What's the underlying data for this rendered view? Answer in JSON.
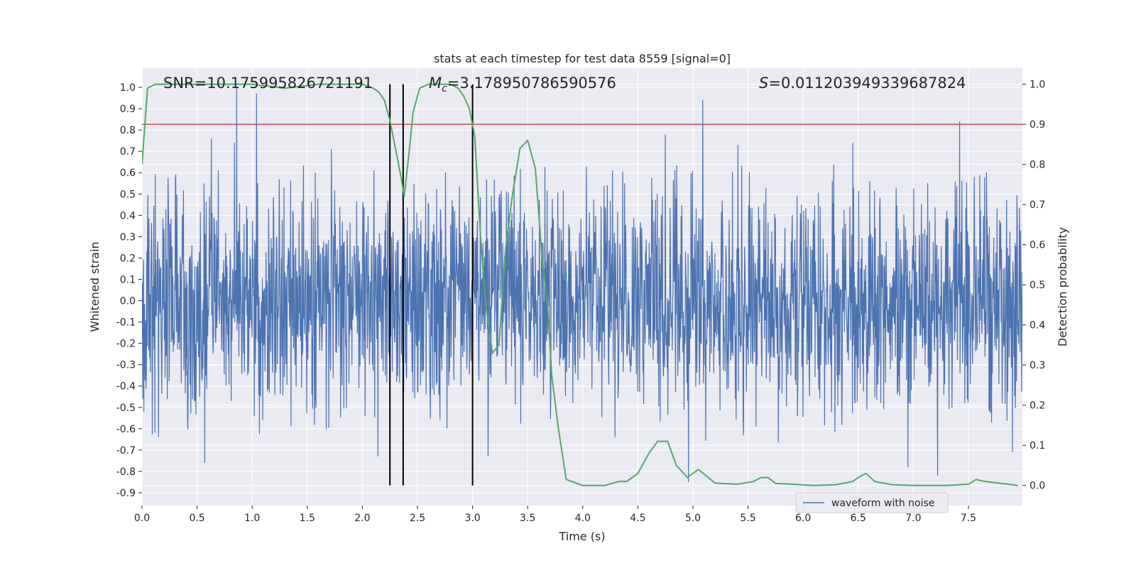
{
  "chart_data": {
    "type": "line",
    "title": "stats at each timestep for test data 8559 [signal=0]",
    "xlabel": "Time (s)",
    "ylabel_left": "Whitened strain",
    "ylabel_right": "Detection probability",
    "xlim": [
      0.0,
      7.99
    ],
    "ylim_left": [
      -0.96,
      1.09
    ],
    "ylim_right": [
      -0.05,
      1.04
    ],
    "x_ticks": [
      0.0,
      0.5,
      1.0,
      1.5,
      2.0,
      2.5,
      3.0,
      3.5,
      4.0,
      4.5,
      5.0,
      5.5,
      6.0,
      6.5,
      7.0,
      7.5
    ],
    "x_tick_labels": [
      "0.0",
      "0.5",
      "1.0",
      "1.5",
      "2.0",
      "2.5",
      "3.0",
      "3.5",
      "4.0",
      "4.5",
      "5.0",
      "5.5",
      "6.0",
      "6.5",
      "7.0",
      "7.5"
    ],
    "y_left_ticks": [
      1.0,
      0.9,
      0.8,
      0.7,
      0.6,
      0.5,
      0.4,
      0.3,
      0.2,
      0.1,
      0.0,
      -0.1,
      -0.2,
      -0.3,
      -0.4,
      -0.5,
      -0.6,
      -0.7,
      -0.8,
      -0.9
    ],
    "y_left_tick_labels": [
      "1.0",
      "0.9",
      "0.8",
      "0.7",
      "0.6",
      "0.5",
      "0.4",
      "0.3",
      "0.2",
      "0.1",
      "0.0",
      "-0.1",
      "-0.2",
      "-0.3",
      "-0.4",
      "-0.5",
      "-0.6",
      "-0.7",
      "-0.8",
      "-0.9"
    ],
    "y_right_ticks": [
      1.0,
      0.9,
      0.8,
      0.7,
      0.6,
      0.5,
      0.4,
      0.3,
      0.2,
      0.1,
      0.0
    ],
    "y_right_tick_labels": [
      "1.0",
      "0.9",
      "0.8",
      "0.7",
      "0.6",
      "0.5",
      "0.4",
      "0.3",
      "0.2",
      "0.1",
      "0.0"
    ],
    "grid": true,
    "legend": {
      "position": "bottom-right",
      "entries": [
        {
          "label": "waveform with noise",
          "color": "#4c72b0"
        }
      ]
    },
    "annotations": {
      "snr": "SNR=10.175995826721191",
      "mc_symbol": "M",
      "mc_sub": "c",
      "mc_value": "=3.178950786590576",
      "s_symbol": "S",
      "s_value": "=0.011203949339687824"
    },
    "threshold_line": {
      "axis": "right",
      "value": 0.9,
      "color": "#c44e52"
    },
    "vertical_markers": [
      2.25,
      2.37,
      3.0
    ],
    "waveform": {
      "name": "waveform with noise",
      "color": "#4c72b0",
      "axis": "left",
      "duration_s": 7.99,
      "typical_amplitude": 0.43,
      "spikes": [
        {
          "t": 0.86,
          "v": 1.0
        },
        {
          "t": 1.04,
          "v": 0.97
        },
        {
          "t": 0.84,
          "v": 0.74
        },
        {
          "t": 0.63,
          "v": 0.76
        },
        {
          "t": 0.57,
          "v": -0.76
        },
        {
          "t": 0.15,
          "v": -0.64
        },
        {
          "t": 1.72,
          "v": 0.71
        },
        {
          "t": 2.14,
          "v": -0.73
        },
        {
          "t": 3.14,
          "v": -0.73
        },
        {
          "t": 4.75,
          "v": 0.78
        },
        {
          "t": 5.09,
          "v": 0.94
        },
        {
          "t": 4.96,
          "v": -0.85
        },
        {
          "t": 7.42,
          "v": 0.84
        },
        {
          "t": 7.22,
          "v": -0.82
        },
        {
          "t": 6.45,
          "v": 0.74
        },
        {
          "t": 5.41,
          "v": 0.73
        },
        {
          "t": 6.95,
          "v": -0.78
        },
        {
          "t": 7.9,
          "v": -0.71
        }
      ]
    },
    "probability": {
      "name": "detection probability",
      "color": "#55a868",
      "axis": "right",
      "x": [
        0.0,
        0.05,
        0.12,
        0.2,
        0.3,
        0.5,
        0.8,
        1.0,
        1.3,
        1.6,
        1.9,
        2.0,
        2.1,
        2.15,
        2.2,
        2.25,
        2.3,
        2.35,
        2.38,
        2.42,
        2.46,
        2.52,
        2.6,
        2.7,
        2.8,
        2.87,
        2.92,
        2.97,
        3.02,
        3.07,
        3.12,
        3.18,
        3.24,
        3.3,
        3.36,
        3.43,
        3.5,
        3.57,
        3.63,
        3.68,
        3.72,
        3.78,
        3.85,
        4.0,
        4.2,
        4.33,
        4.4,
        4.5,
        4.6,
        4.68,
        4.77,
        4.85,
        4.95,
        5.05,
        5.2,
        5.4,
        5.55,
        5.62,
        5.68,
        5.75,
        5.9,
        6.1,
        6.3,
        6.45,
        6.5,
        6.57,
        6.65,
        6.8,
        7.0,
        7.3,
        7.5,
        7.57,
        7.65,
        7.8,
        7.95
      ],
      "y": [
        0.8,
        0.99,
        1.0,
        1.0,
        1.0,
        1.0,
        1.0,
        1.0,
        0.99,
        1.0,
        1.0,
        1.0,
        0.99,
        0.98,
        0.96,
        0.91,
        0.84,
        0.77,
        0.72,
        0.82,
        0.93,
        0.99,
        1.0,
        1.0,
        1.0,
        0.99,
        0.97,
        0.94,
        0.87,
        0.63,
        0.45,
        0.33,
        0.35,
        0.59,
        0.72,
        0.84,
        0.86,
        0.79,
        0.57,
        0.45,
        0.27,
        0.14,
        0.015,
        0.0,
        0.0,
        0.01,
        0.01,
        0.03,
        0.08,
        0.11,
        0.11,
        0.05,
        0.02,
        0.04,
        0.006,
        0.003,
        0.01,
        0.02,
        0.02,
        0.005,
        0.003,
        0.0,
        0.002,
        0.01,
        0.02,
        0.03,
        0.01,
        0.002,
        0.0,
        0.0,
        0.003,
        0.015,
        0.01,
        0.005,
        0.0
      ]
    }
  }
}
